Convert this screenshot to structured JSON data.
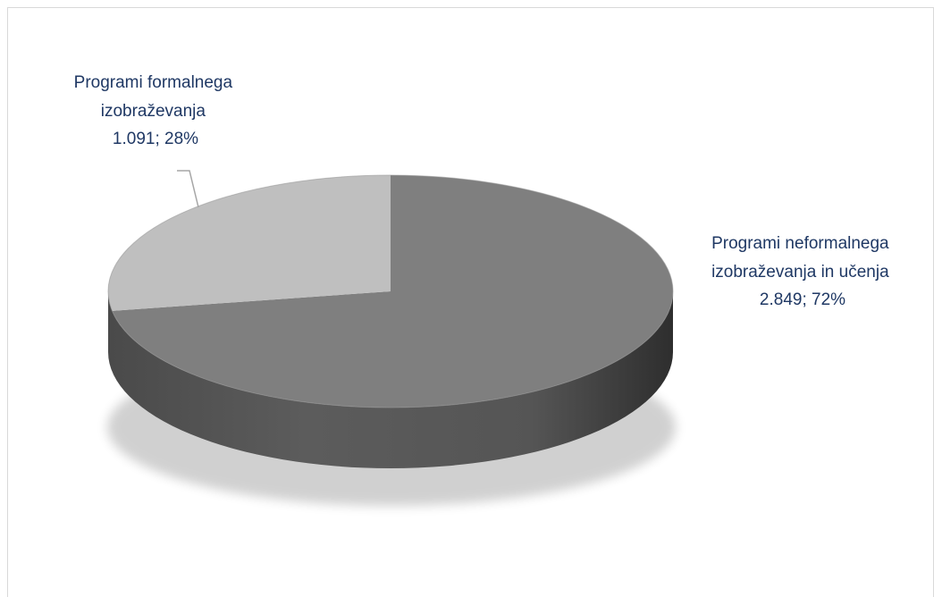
{
  "chart_data": {
    "type": "pie",
    "title": "",
    "slices": [
      {
        "name_line1": "Programi neformalnega",
        "name_line2": "izobraževanja in učenja",
        "value": 2849,
        "value_text": "2.849; 72%",
        "percent": 72,
        "color": "#7f7f7f"
      },
      {
        "name_line1": "Programi formalnega",
        "name_line2": "izobraževanja",
        "value": 1091,
        "value_text": "1.091; 28%",
        "percent": 28,
        "color": "#bfbfbf"
      }
    ],
    "legend": "none"
  }
}
